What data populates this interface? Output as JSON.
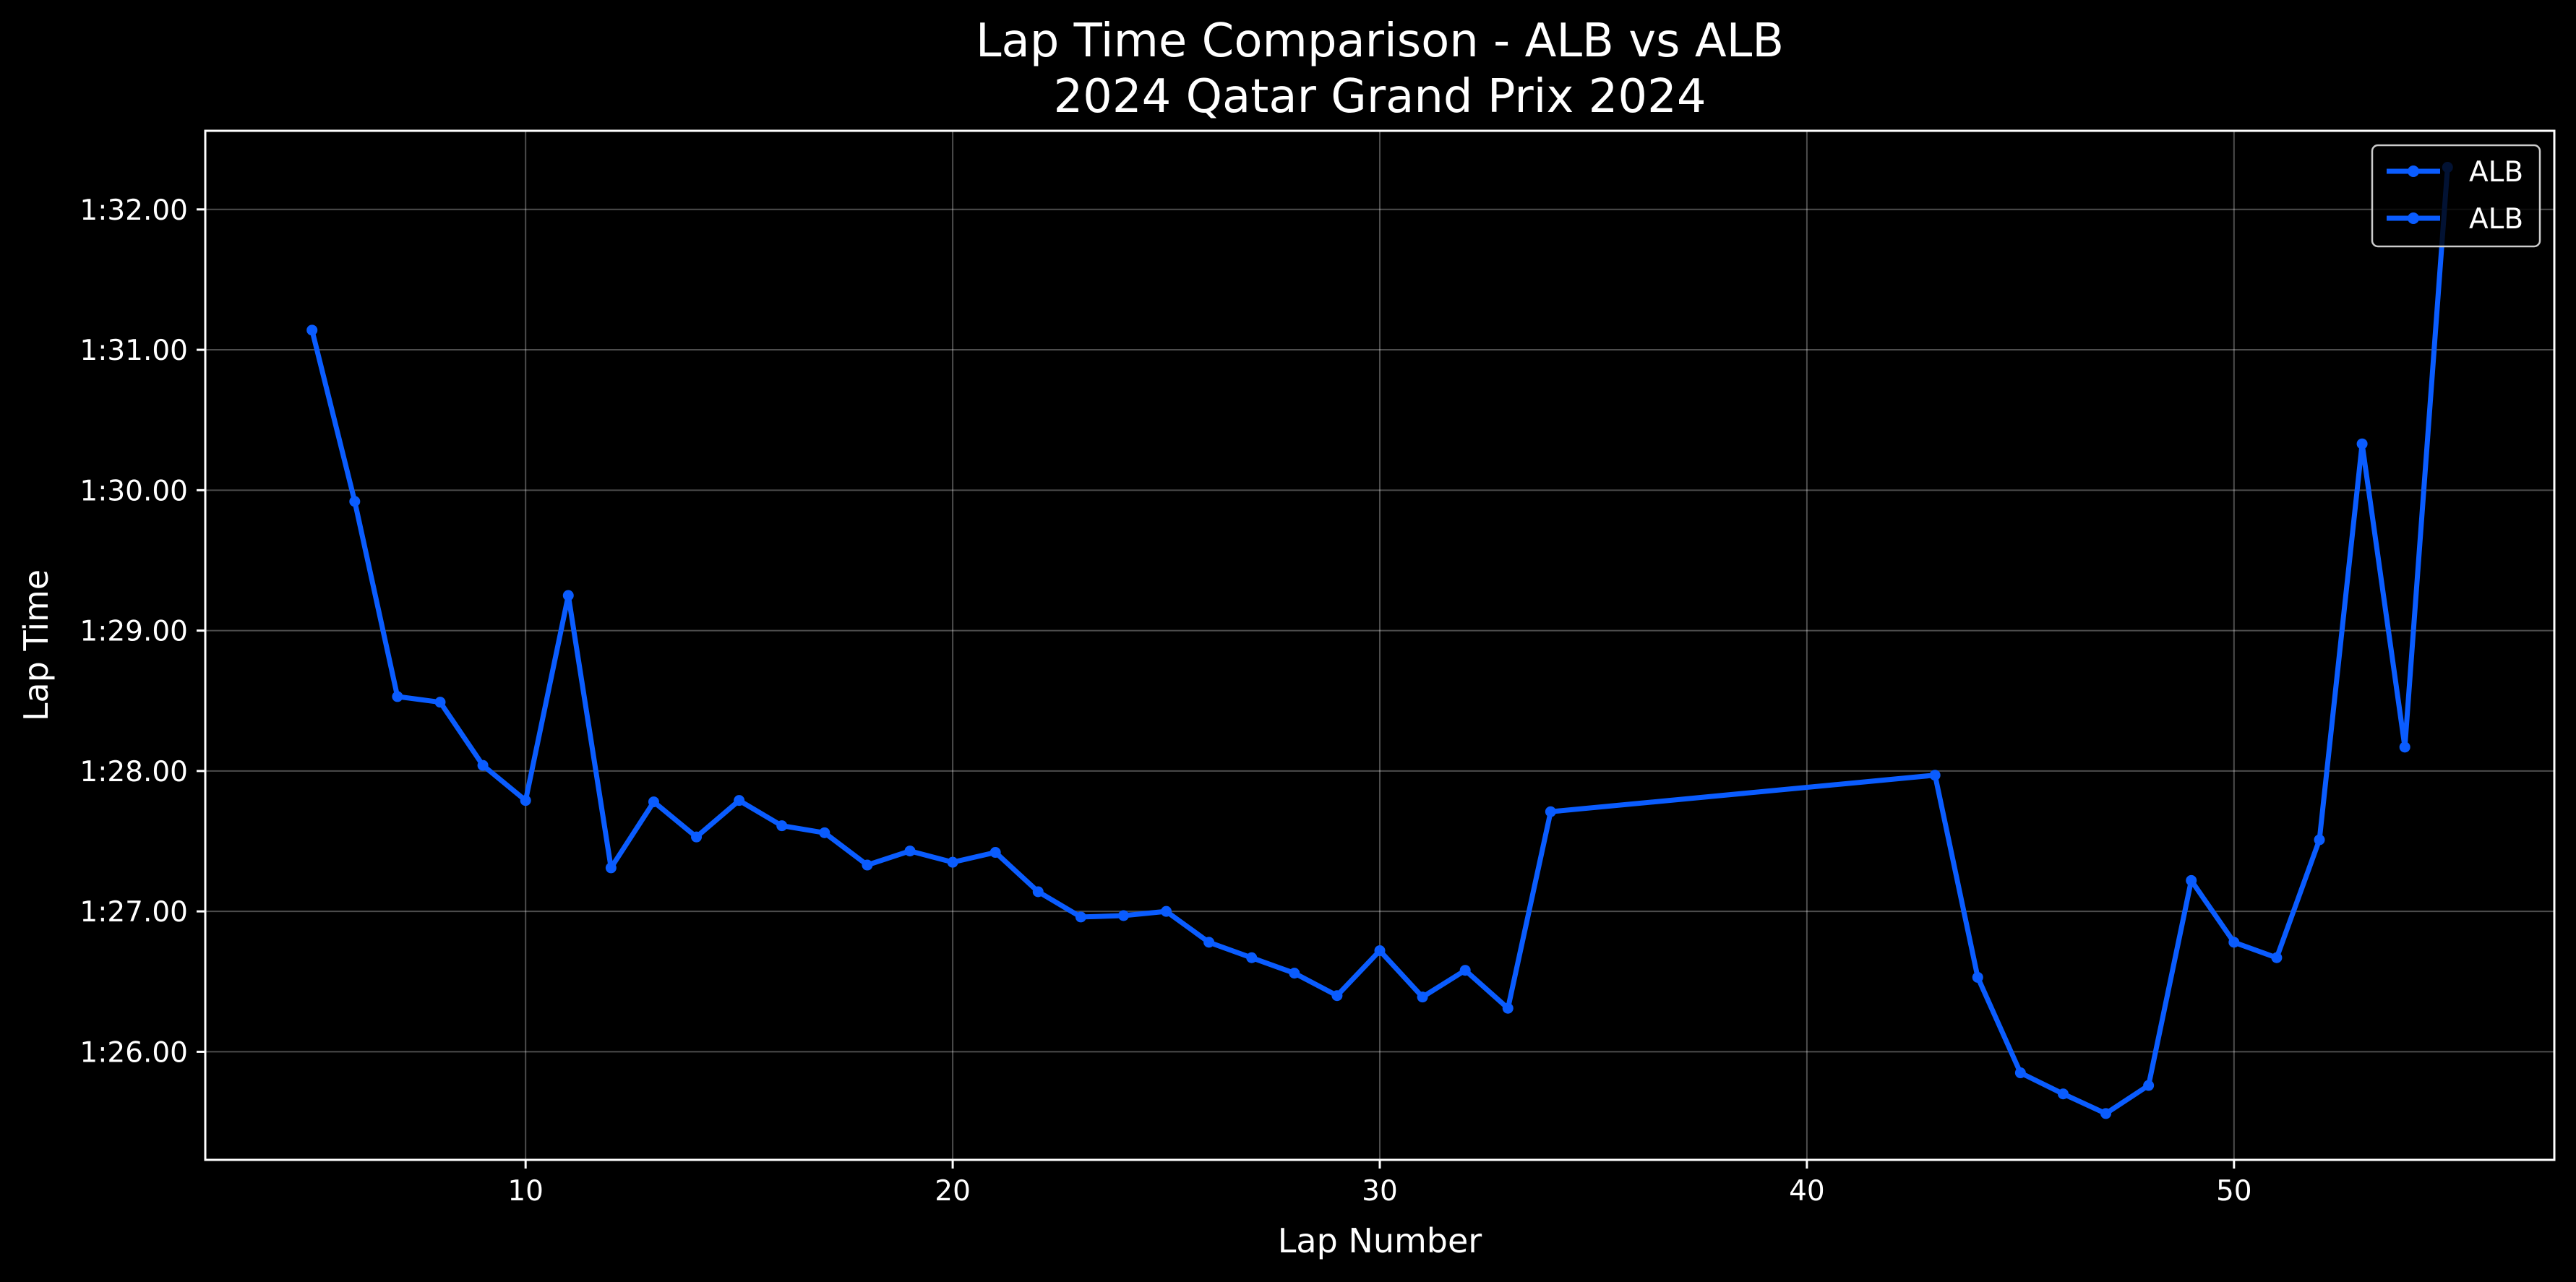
{
  "chart_data": {
    "type": "line",
    "title": "Lap Time Comparison - ALB vs ALB",
    "subtitle": "2024 Qatar Grand Prix 2024",
    "xlabel": "Lap Number",
    "ylabel": "Lap Time",
    "xlim": [
      2.5,
      57.5
    ],
    "ylim": [
      85.23,
      92.56
    ],
    "x_ticks": [
      10,
      20,
      30,
      40,
      50
    ],
    "y_ticks": [
      {
        "value": 86,
        "label": "1:26.00"
      },
      {
        "value": 87,
        "label": "1:27.00"
      },
      {
        "value": 88,
        "label": "1:28.00"
      },
      {
        "value": 89,
        "label": "1:29.00"
      },
      {
        "value": 90,
        "label": "1:30.00"
      },
      {
        "value": 91,
        "label": "1:31.00"
      },
      {
        "value": 92,
        "label": "1:32.00"
      }
    ],
    "grid": true,
    "legend_position": "top-right",
    "series": [
      {
        "name": "ALB",
        "color": "#0a5cff",
        "x": [
          5,
          6,
          7,
          8,
          9,
          10,
          11,
          12,
          13,
          14,
          15,
          16,
          17,
          18,
          19,
          20,
          21,
          22,
          23,
          24,
          25,
          26,
          27,
          28,
          29,
          30,
          31,
          32,
          33,
          34,
          43,
          44,
          45,
          46,
          47,
          48,
          49,
          50,
          51,
          52,
          53,
          54,
          55
        ],
        "y": [
          91.14,
          89.92,
          88.53,
          88.49,
          88.04,
          87.79,
          89.25,
          87.31,
          87.78,
          87.53,
          87.79,
          87.61,
          87.56,
          87.33,
          87.43,
          87.35,
          87.42,
          87.14,
          86.96,
          86.97,
          87.0,
          86.78,
          86.67,
          86.56,
          86.4,
          86.72,
          86.39,
          86.58,
          86.31,
          87.71,
          87.97,
          86.53,
          85.85,
          85.7,
          85.56,
          85.76,
          87.22,
          86.78,
          86.67,
          87.51,
          90.33,
          88.17,
          92.3
        ]
      },
      {
        "name": "ALB",
        "color": "#0a5cff",
        "x": [],
        "y": []
      }
    ]
  }
}
